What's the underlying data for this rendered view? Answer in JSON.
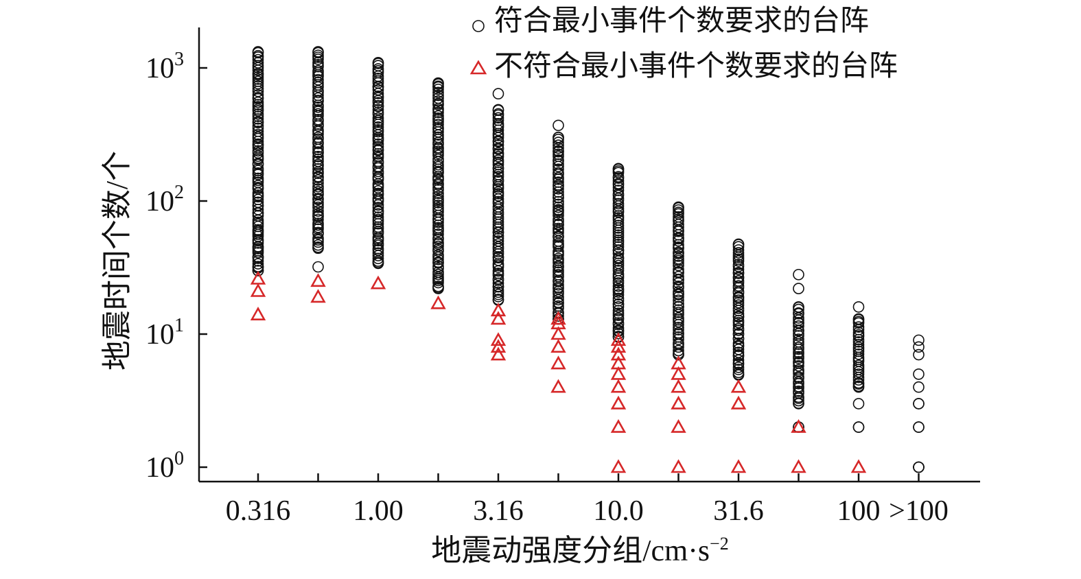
{
  "chart_data": {
    "type": "scatter",
    "xlabel": "地震动强度分组/cm·s",
    "xlabel_sup": "−2",
    "ylabel": "地震时间个数/个",
    "y_scale": "log",
    "ylim": [
      0.85,
      2000
    ],
    "y_ticks": [
      {
        "value": 1,
        "base": "10",
        "exp": "0"
      },
      {
        "value": 10,
        "base": "10",
        "exp": "1"
      },
      {
        "value": 100,
        "base": "10",
        "exp": "2"
      },
      {
        "value": 1000,
        "base": "10",
        "exp": "3"
      }
    ],
    "categories": [
      "0.316",
      "",
      "1.00",
      "",
      "3.16",
      "",
      "10.0",
      "",
      "31.6",
      "",
      "100",
      ">100"
    ],
    "legend": {
      "position": "top-right",
      "entries": [
        {
          "symbol": "circle",
          "label": "符合最小事件个数要求的台阵",
          "color": "#111111"
        },
        {
          "symbol": "triangle",
          "label": "不符合最小事件个数要求的台阵",
          "color": "#d62728"
        }
      ]
    },
    "series": [
      {
        "name": "符合最小事件个数要求的台阵",
        "symbol": "circle",
        "color": "#111111",
        "ranges": [
          {
            "min": 30,
            "max": 1300,
            "extra": [
              32,
              38,
              45,
              58
            ]
          },
          {
            "min": 45,
            "max": 1300,
            "extra": [
              32
            ]
          },
          {
            "min": 34,
            "max": 1080,
            "extra": []
          },
          {
            "min": 22,
            "max": 770,
            "extra": []
          },
          {
            "min": 18,
            "max": 480,
            "extra": [
              640
            ]
          },
          {
            "min": 13,
            "max": 300,
            "extra": [
              370
            ]
          },
          {
            "min": 9.5,
            "max": 175,
            "extra": []
          },
          {
            "min": 7,
            "max": 90,
            "extra": []
          },
          {
            "min": 5,
            "max": 47,
            "extra": []
          },
          {
            "min": 3,
            "max": 16,
            "extra": [
              2,
              2,
              22,
              28
            ]
          },
          {
            "min": 4,
            "max": 13,
            "extra": [
              2,
              2,
              3,
              16
            ]
          },
          {
            "min": 1,
            "max": 1,
            "extra": [
              1,
              2,
              2,
              3,
              3,
              4,
              5,
              7,
              8,
              9
            ]
          }
        ]
      },
      {
        "name": "不符合最小事件个数要求的台阵",
        "symbol": "triangle",
        "color": "#d62728",
        "points": [
          [
            14,
            21,
            26
          ],
          [
            19,
            25
          ],
          [
            24
          ],
          [
            17
          ],
          [
            7,
            8,
            9,
            13,
            15
          ],
          [
            4,
            6,
            8,
            10,
            12,
            13
          ],
          [
            1,
            2,
            3,
            4,
            5,
            6,
            7,
            8,
            9
          ],
          [
            1,
            2,
            3,
            4,
            5,
            6
          ],
          [
            1,
            3,
            4
          ],
          [
            1,
            2
          ],
          [
            1
          ],
          []
        ]
      }
    ]
  }
}
